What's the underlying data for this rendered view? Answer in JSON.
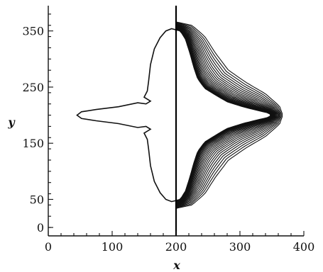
{
  "chart_data": {
    "type": "contour",
    "xlabel": "x",
    "ylabel": "y",
    "xlim": [
      0,
      400
    ],
    "ylim": [
      -15,
      395
    ],
    "x_ticks": [
      0,
      100,
      200,
      300,
      400
    ],
    "y_ticks": [
      0,
      50,
      150,
      250,
      350
    ],
    "vertical_line_x": 200,
    "contour_count": 24,
    "left_outline": [
      [
        200,
        352
      ],
      [
        193,
        354
      ],
      [
        184,
        350
      ],
      [
        175,
        338
      ],
      [
        166,
        318
      ],
      [
        160,
        290
      ],
      [
        157,
        260
      ],
      [
        155,
        243
      ],
      [
        150,
        232
      ],
      [
        160,
        225
      ],
      [
        153,
        220
      ],
      [
        140,
        222
      ],
      [
        110,
        215
      ],
      [
        75,
        210
      ],
      [
        52,
        206
      ],
      [
        45,
        200
      ],
      [
        52,
        194
      ],
      [
        75,
        190
      ],
      [
        110,
        185
      ],
      [
        140,
        178
      ],
      [
        153,
        180
      ],
      [
        160,
        175
      ],
      [
        150,
        168
      ],
      [
        155,
        157
      ],
      [
        157,
        140
      ],
      [
        160,
        110
      ],
      [
        166,
        82
      ],
      [
        175,
        62
      ],
      [
        184,
        50
      ],
      [
        193,
        46
      ],
      [
        200,
        48
      ]
    ],
    "right_inner": [
      [
        200,
        352
      ],
      [
        207,
        350
      ],
      [
        215,
        335
      ],
      [
        222,
        310
      ],
      [
        228,
        285
      ],
      [
        234,
        265
      ],
      [
        245,
        248
      ],
      [
        262,
        236
      ],
      [
        280,
        224
      ],
      [
        305,
        215
      ],
      [
        330,
        208
      ],
      [
        345,
        204
      ],
      [
        350,
        200
      ],
      [
        345,
        196
      ],
      [
        330,
        192
      ],
      [
        305,
        185
      ],
      [
        280,
        176
      ],
      [
        262,
        164
      ],
      [
        245,
        152
      ],
      [
        234,
        135
      ],
      [
        228,
        115
      ],
      [
        222,
        90
      ],
      [
        215,
        65
      ],
      [
        207,
        50
      ],
      [
        200,
        48
      ]
    ],
    "right_outer": [
      [
        200,
        366
      ],
      [
        225,
        360
      ],
      [
        245,
        340
      ],
      [
        262,
        310
      ],
      [
        282,
        280
      ],
      [
        310,
        258
      ],
      [
        340,
        238
      ],
      [
        362,
        216
      ],
      [
        367,
        200
      ],
      [
        362,
        184
      ],
      [
        340,
        162
      ],
      [
        310,
        142
      ],
      [
        282,
        120
      ],
      [
        262,
        90
      ],
      [
        245,
        60
      ],
      [
        225,
        40
      ],
      [
        200,
        34
      ]
    ]
  }
}
